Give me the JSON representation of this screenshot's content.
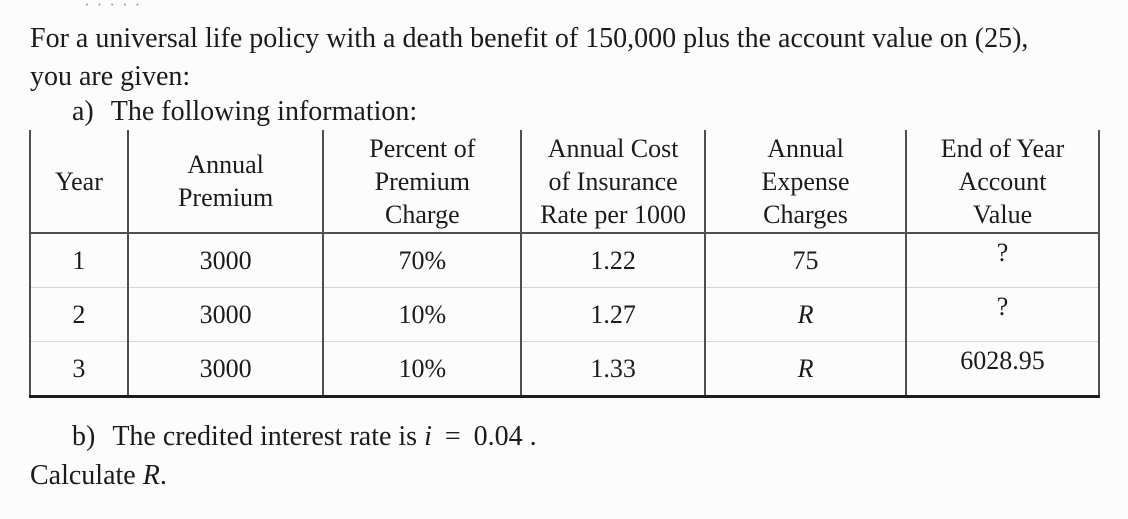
{
  "fragment": {
    "text": "·····"
  },
  "intro": {
    "line1": "For a universal life policy with a death benefit of 150,000 plus the account value on (25),",
    "line2": "you are given:"
  },
  "items": {
    "a": {
      "label": "a)",
      "text": "The following information:"
    },
    "b": {
      "label": "b)",
      "text": "The credited interest rate is",
      "var": "i",
      "eq": "=",
      "value": "0.04",
      "period": "."
    }
  },
  "calculate": {
    "text": "Calculate",
    "var": "R",
    "period": "."
  },
  "table": {
    "headers": [
      "Year",
      "Annual\nPremium",
      "Percent of\nPremium\nCharge",
      "Annual Cost\nof Insurance\nRate per 1000",
      "Annual\nExpense\nCharges",
      "End of Year\nAccount\nValue"
    ],
    "rows": [
      [
        "1",
        "3000",
        "70%",
        "1.22",
        "75",
        "?"
      ],
      [
        "2",
        "3000",
        "10%",
        "1.27",
        {
          "t": "R",
          "italic": true
        },
        "?"
      ],
      [
        "3",
        "3000",
        "10%",
        "1.33",
        {
          "t": "R",
          "italic": true
        },
        "6028.95"
      ]
    ]
  },
  "colors": {
    "page_background": "#fcfcfc",
    "text": "#1b1b1b",
    "table_line_dark": "#4f4f4f",
    "table_line_light": "#d6d6d6",
    "table_bottom_rule": "#1e1e1e"
  }
}
